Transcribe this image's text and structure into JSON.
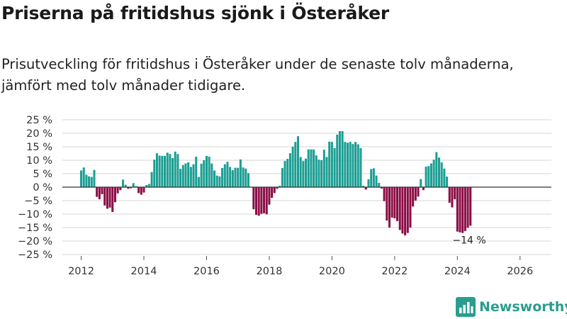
{
  "title": "Priserna på fritidshus sjönk i Österåker",
  "subtitle": "Prisutveckling för fritidshus i Österåker under de senaste tolv månaderna, jämfört med tolv månader tidigare.",
  "brand": {
    "name": "Newsworthy",
    "color": "#2a9d8f"
  },
  "chart_data": {
    "type": "bar",
    "title": "Priserna på fritidshus sjönk i Österåker",
    "xlabel": "",
    "ylabel": "",
    "ylim": [
      -25,
      25
    ],
    "yticks": [
      25,
      20,
      15,
      10,
      5,
      0,
      -5,
      -10,
      -15,
      -20,
      -25
    ],
    "ytick_labels": [
      "25 %",
      "20 %",
      "15 %",
      "10 %",
      "5 %",
      "0 %",
      "−5 %",
      "−10 %",
      "−15 %",
      "−20 %",
      "−25 %"
    ],
    "xlim": [
      2011.4,
      2027.0
    ],
    "xticks": [
      2012,
      2014,
      2016,
      2018,
      2020,
      2022,
      2024,
      2026
    ],
    "xtick_labels": [
      "2012",
      "2014",
      "2016",
      "2018",
      "2020",
      "2022",
      "2024",
      "2026"
    ],
    "grid": true,
    "colors": {
      "positive": "#1b9e93",
      "negative": "#8b0d45",
      "grid": "#d6d6d6",
      "zero": "#333333"
    },
    "start": {
      "year": 2012,
      "month": 1
    },
    "values": [
      6.2,
      7.3,
      4.6,
      4.0,
      3.8,
      6.4,
      -3.6,
      -4.5,
      -2.6,
      -6.8,
      -8.0,
      -7.6,
      -9.2,
      -5.6,
      -2.3,
      -1.1,
      2.8,
      0.9,
      -0.6,
      -0.4,
      1.5,
      0.4,
      -2.2,
      -2.8,
      -2.0,
      0.8,
      1.2,
      5.6,
      10.2,
      12.6,
      11.7,
      11.6,
      11.6,
      12.8,
      12.3,
      10.8,
      13.2,
      12.3,
      6.8,
      8.2,
      8.8,
      9.2,
      7.5,
      8.5,
      11.3,
      3.8,
      8.7,
      10.0,
      11.6,
      11.3,
      8.8,
      6.2,
      4.3,
      4.0,
      7.1,
      8.5,
      9.4,
      7.5,
      6.3,
      7.2,
      7.2,
      10.3,
      7.3,
      6.9,
      5.2,
      0.0,
      -8.2,
      -10.3,
      -10.6,
      -9.9,
      -9.7,
      -10.1,
      -6.5,
      -4.0,
      -2.2,
      -0.6,
      0.5,
      7.1,
      9.7,
      10.5,
      12.6,
      15.0,
      16.8,
      18.9,
      11.2,
      9.7,
      10.6,
      14.0,
      14.0,
      14.0,
      11.8,
      10.2,
      10.0,
      13.9,
      11.2,
      16.9,
      16.8,
      14.5,
      19.5,
      20.8,
      20.8,
      16.8,
      16.5,
      16.8,
      16.0,
      16.8,
      15.9,
      14.5,
      0.5,
      -0.9,
      2.9,
      6.7,
      7.0,
      4.3,
      1.6,
      -0.5,
      -5.2,
      -12.4,
      -15.0,
      -11.3,
      -11.6,
      -12.6,
      -15.9,
      -17.2,
      -17.9,
      -17.0,
      -15.0,
      -7.2,
      -5.0,
      -3.5,
      3.0,
      -1.1,
      7.6,
      7.8,
      8.8,
      10.2,
      13.0,
      11.0,
      9.2,
      6.9,
      3.9,
      -5.8,
      -7.5,
      -4.5,
      -16.5,
      -16.8,
      -17.0,
      -16.3,
      -15.1,
      -14.3
    ],
    "annotation": {
      "text": "−14 %",
      "index": 149
    }
  }
}
